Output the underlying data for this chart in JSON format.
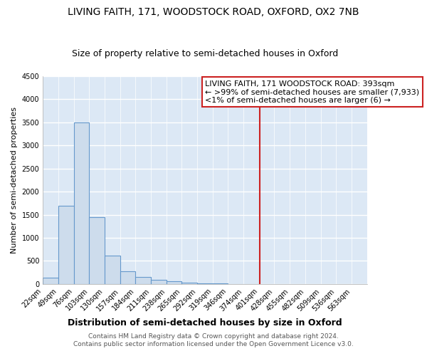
{
  "title": "LIVING FAITH, 171, WOODSTOCK ROAD, OXFORD, OX2 7NB",
  "subtitle": "Size of property relative to semi-detached houses in Oxford",
  "xlabel": "Distribution of semi-detached houses by size in Oxford",
  "ylabel": "Number of semi-detached properties",
  "bar_values": [
    130,
    1700,
    3500,
    1440,
    620,
    270,
    155,
    90,
    55,
    30,
    20,
    10,
    5,
    3
  ],
  "bin_starts": [
    22,
    49,
    76,
    103,
    130,
    157,
    184,
    211,
    238,
    265,
    292,
    319,
    346,
    374
  ],
  "bin_width": 27,
  "tick_labels": [
    "22sqm",
    "49sqm",
    "76sqm",
    "103sqm",
    "130sqm",
    "157sqm",
    "184sqm",
    "211sqm",
    "238sqm",
    "265sqm",
    "292sqm",
    "319sqm",
    "346sqm",
    "374sqm",
    "401sqm",
    "428sqm",
    "455sqm",
    "482sqm",
    "509sqm",
    "536sqm",
    "563sqm"
  ],
  "bar_color": "#cddcec",
  "bar_edge_color": "#6699cc",
  "vline_x": 401,
  "vline_color": "#cc2222",
  "ylim": [
    0,
    4500
  ],
  "xlim": [
    22,
    590
  ],
  "yticks": [
    0,
    500,
    1000,
    1500,
    2000,
    2500,
    3000,
    3500,
    4000,
    4500
  ],
  "annotation_title": "LIVING FAITH, 171 WOODSTOCK ROAD: 393sqm",
  "annotation_line1": "← >99% of semi-detached houses are smaller (7,933)",
  "annotation_line2": "<1% of semi-detached houses are larger (6) →",
  "footer1": "Contains HM Land Registry data © Crown copyright and database right 2024.",
  "footer2": "Contains public sector information licensed under the Open Government Licence v3.0.",
  "bg_color": "#ffffff",
  "plot_bg_color": "#dce8f5",
  "grid_color": "#ffffff",
  "title_fontsize": 10,
  "subtitle_fontsize": 9,
  "ylabel_fontsize": 8,
  "xlabel_fontsize": 9,
  "tick_fontsize": 7,
  "footer_fontsize": 6.5,
  "ann_fontsize": 8
}
